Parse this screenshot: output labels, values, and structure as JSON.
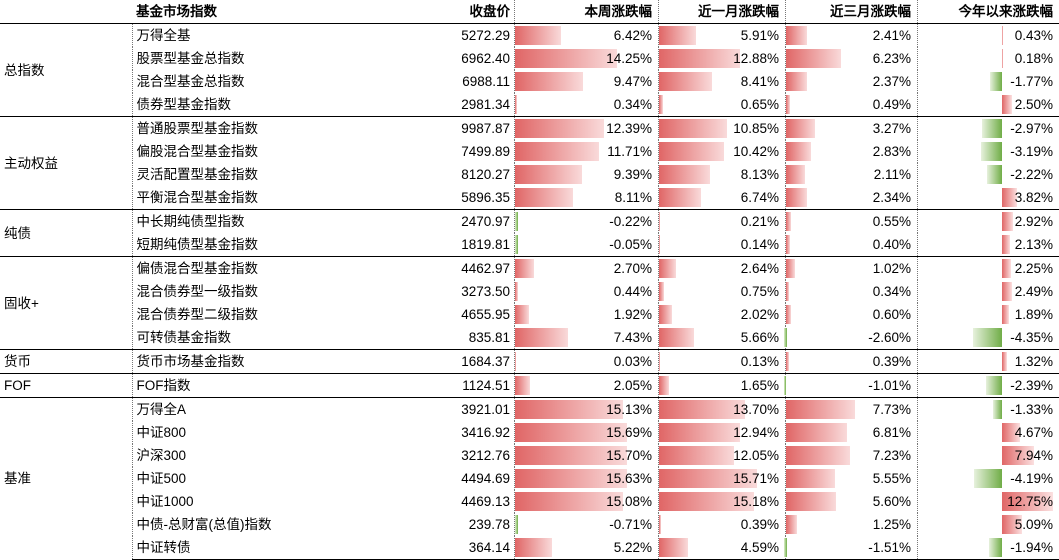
{
  "headers": [
    "基金市场指数",
    "收盘价",
    "本周涨跌幅",
    "近一月涨跌幅",
    "近三月涨跌幅",
    "今年以来涨跌幅"
  ],
  "groups": [
    {
      "label": "总指数",
      "rows": [
        {
          "name": "万得全基",
          "price": "5272.29",
          "w": "6.42%",
          "m1": "5.91%",
          "m3": "2.41%",
          "ytd": "0.43%"
        },
        {
          "name": "股票型基金总指数",
          "price": "6962.40",
          "w": "14.25%",
          "m1": "12.88%",
          "m3": "6.23%",
          "ytd": "0.18%"
        },
        {
          "name": "混合型基金总指数",
          "price": "6988.11",
          "w": "9.47%",
          "m1": "8.41%",
          "m3": "2.37%",
          "ytd": "-1.77%"
        },
        {
          "name": "债券型基金指数",
          "price": "2981.34",
          "w": "0.34%",
          "m1": "0.65%",
          "m3": "0.49%",
          "ytd": "2.50%"
        }
      ]
    },
    {
      "label": "主动权益",
      "rows": [
        {
          "name": "普通股票型基金指数",
          "price": "9987.87",
          "w": "12.39%",
          "m1": "10.85%",
          "m3": "3.27%",
          "ytd": "-2.97%"
        },
        {
          "name": "偏股混合型基金指数",
          "price": "7499.89",
          "w": "11.71%",
          "m1": "10.42%",
          "m3": "2.83%",
          "ytd": "-3.19%"
        },
        {
          "name": "灵活配置型基金指数",
          "price": "8120.27",
          "w": "9.39%",
          "m1": "8.13%",
          "m3": "2.11%",
          "ytd": "-2.22%"
        },
        {
          "name": "平衡混合型基金指数",
          "price": "5896.35",
          "w": "8.11%",
          "m1": "6.74%",
          "m3": "2.34%",
          "ytd": "3.82%"
        }
      ]
    },
    {
      "label": "纯债",
      "rows": [
        {
          "name": "中长期纯债型指数",
          "price": "2470.97",
          "w": "-0.22%",
          "m1": "0.21%",
          "m3": "0.55%",
          "ytd": "2.92%"
        },
        {
          "name": "短期纯债型基金指数",
          "price": "1819.81",
          "w": "-0.05%",
          "m1": "0.14%",
          "m3": "0.40%",
          "ytd": "2.13%"
        }
      ]
    },
    {
      "label": "固收+",
      "rows": [
        {
          "name": "偏债混合型基金指数",
          "price": "4462.97",
          "w": "2.70%",
          "m1": "2.64%",
          "m3": "1.02%",
          "ytd": "2.25%"
        },
        {
          "name": "混合债券型一级指数",
          "price": "3273.50",
          "w": "0.44%",
          "m1": "0.75%",
          "m3": "0.34%",
          "ytd": "2.49%"
        },
        {
          "name": "混合债券型二级指数",
          "price": "4655.95",
          "w": "1.92%",
          "m1": "2.02%",
          "m3": "0.60%",
          "ytd": "1.89%"
        },
        {
          "name": "可转债基金指数",
          "price": "835.81",
          "w": "7.43%",
          "m1": "5.66%",
          "m3": "-2.60%",
          "ytd": "-4.35%"
        }
      ]
    },
    {
      "label": "货币",
      "rows": [
        {
          "name": "货币市场基金指数",
          "price": "1684.37",
          "w": "0.03%",
          "m1": "0.13%",
          "m3": "0.39%",
          "ytd": "1.32%"
        }
      ]
    },
    {
      "label": "FOF",
      "rows": [
        {
          "name": "FOF指数",
          "price": "1124.51",
          "w": "2.05%",
          "m1": "1.65%",
          "m3": "-1.01%",
          "ytd": "-2.39%"
        }
      ]
    },
    {
      "label": "基准",
      "rows": [
        {
          "name": "万得全A",
          "price": "3921.01",
          "w": "15.13%",
          "m1": "13.70%",
          "m3": "7.73%",
          "ytd": "-1.33%"
        },
        {
          "name": "中证800",
          "price": "3416.92",
          "w": "15.69%",
          "m1": "12.94%",
          "m3": "6.81%",
          "ytd": "4.67%"
        },
        {
          "name": "沪深300",
          "price": "3212.76",
          "w": "15.70%",
          "m1": "12.05%",
          "m3": "7.23%",
          "ytd": "7.94%"
        },
        {
          "name": "中证500",
          "price": "4494.69",
          "w": "15.63%",
          "m1": "15.71%",
          "m3": "5.55%",
          "ytd": "-4.19%"
        },
        {
          "name": "中证1000",
          "price": "4469.13",
          "w": "15.08%",
          "m1": "15.18%",
          "m3": "5.60%",
          "ytd": "12.75%"
        },
        {
          "name": "中债-总财富(总值)指数",
          "price": "239.78",
          "w": "-0.71%",
          "m1": "0.39%",
          "m3": "1.25%",
          "ytd": "5.09%"
        },
        {
          "name": "中证转债",
          "price": "364.14",
          "w": "5.22%",
          "m1": "4.59%",
          "m3": "-1.51%",
          "ytd": "-1.94%"
        }
      ]
    }
  ],
  "colors": {
    "positive_bar": "#e06666",
    "negative_bar": "#70ad47"
  }
}
